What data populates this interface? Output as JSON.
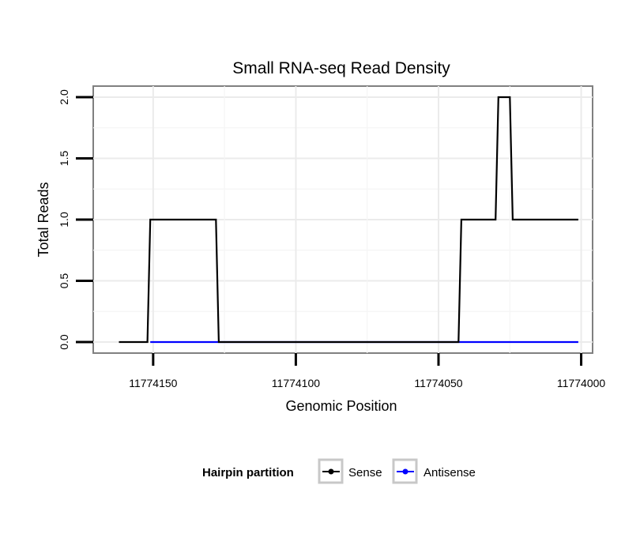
{
  "chart_data": {
    "type": "line",
    "title": "Small RNA-seq Read Density",
    "xlabel": "Genomic Position",
    "ylabel": "Total Reads",
    "xlim": [
      11774171,
      11773996
    ],
    "ylim": [
      -0.09,
      2.09
    ],
    "x_reversed": true,
    "grid": true,
    "xticks": [
      11774150,
      11774100,
      11774050,
      11774000
    ],
    "xtick_labels": [
      "11774150",
      "11774100",
      "11774050",
      "11774000"
    ],
    "yticks": [
      0.0,
      0.5,
      1.0,
      1.5,
      2.0
    ],
    "ytick_labels": [
      "0.0",
      "0.5",
      "1.0",
      "1.5",
      "2.0"
    ],
    "legend": {
      "title": "Hairpin partition",
      "position": "bottom",
      "entries": [
        "Sense",
        "Antisense"
      ]
    },
    "series": [
      {
        "name": "Sense",
        "color": "#000000",
        "x": [
          11774162,
          11774152,
          11774151,
          11774128,
          11774127,
          11774043,
          11774042,
          11774030,
          11774029,
          11774025,
          11774024,
          11774001
        ],
        "values": [
          0,
          0,
          1,
          1,
          0,
          0,
          1,
          1,
          2,
          2,
          1,
          1
        ]
      },
      {
        "name": "Antisense",
        "color": "#0000ff",
        "x": [
          11774151,
          11774128,
          11774127,
          11774043,
          11774042,
          11774001
        ],
        "values": [
          0,
          0,
          0,
          0,
          0,
          0
        ]
      }
    ]
  }
}
